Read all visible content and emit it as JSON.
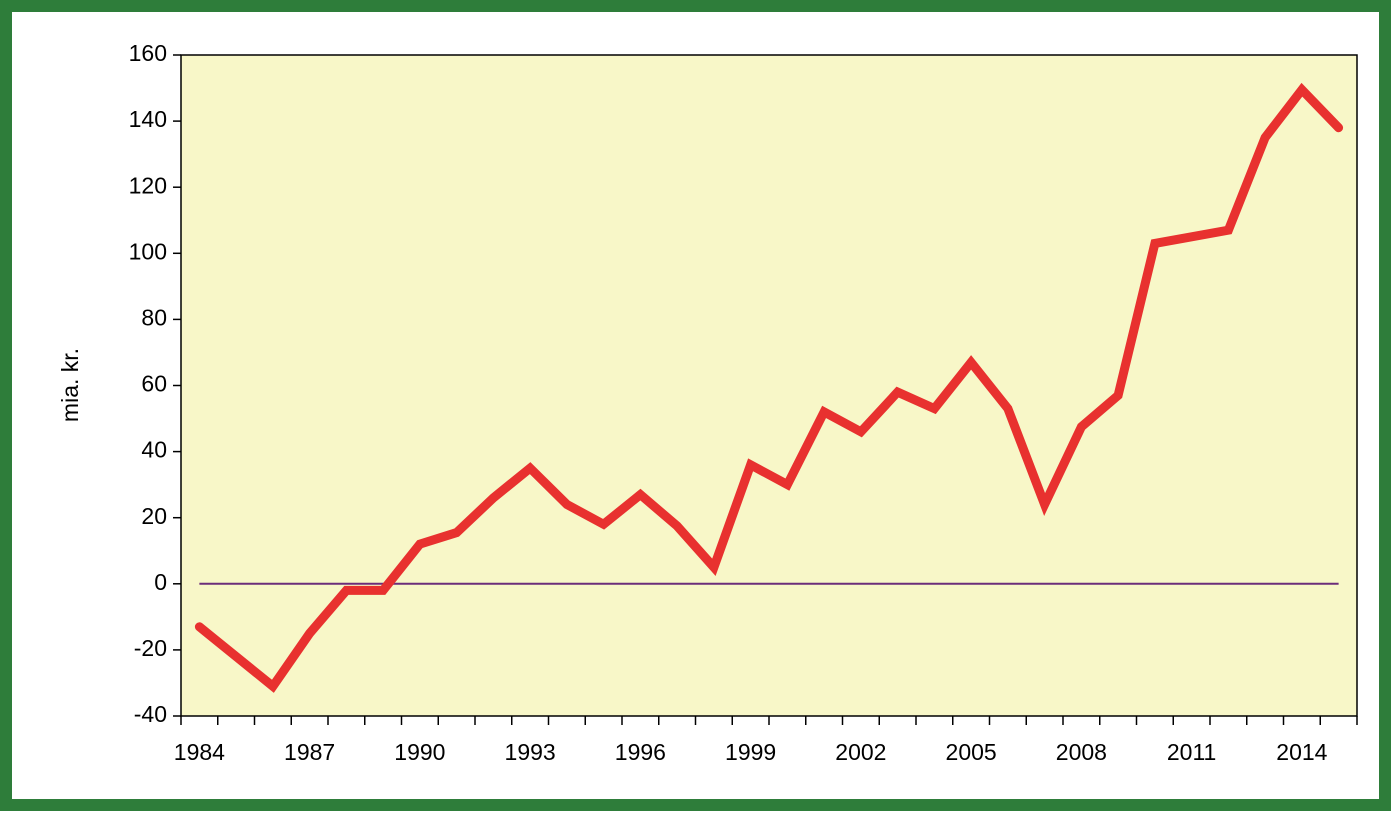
{
  "chart_data": {
    "type": "line",
    "ylabel": "mia. kr.",
    "categories": [
      "1984",
      null,
      null,
      "1987",
      null,
      null,
      "1990",
      null,
      null,
      "1993",
      null,
      null,
      "1996",
      null,
      null,
      "1999",
      null,
      null,
      "2002",
      null,
      null,
      "2005",
      null,
      null,
      "2008",
      null,
      null,
      "2011",
      null,
      null,
      "2014",
      null
    ],
    "series": [
      {
        "color": "#e8312f",
        "values": [
          -13,
          -22,
          -31,
          -15,
          -2,
          -2,
          12,
          15.5,
          26,
          35,
          24,
          18,
          27,
          17.5,
          5,
          36,
          30,
          52,
          46,
          58,
          53,
          67,
          53,
          24,
          47.5,
          57,
          103,
          105,
          107,
          135,
          149.5,
          138
        ]
      }
    ],
    "ylim": [
      -40,
      160
    ],
    "yticks": [
      -40,
      -20,
      0,
      20,
      40,
      60,
      80,
      100,
      120,
      140,
      160
    ],
    "zero_line_color": "#6b2d7a"
  }
}
